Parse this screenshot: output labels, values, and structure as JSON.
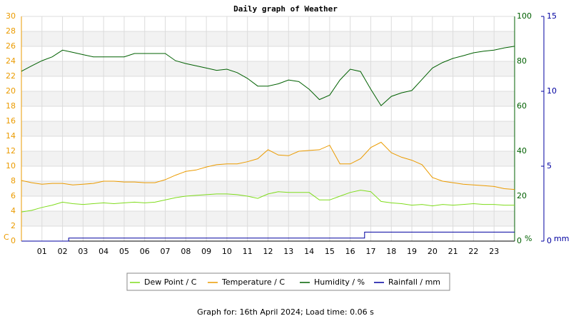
{
  "chart_data": {
    "type": "line",
    "title": "Daily graph of Weather",
    "footer": "Graph for: 16th April 2024; Load time: 0.06 s",
    "y_unit": "C",
    "y2_unit": "%",
    "y3_unit": "mm",
    "grid": true,
    "xlim": [
      0,
      24
    ],
    "xticks": [
      {
        "value": 1,
        "label": "01"
      },
      {
        "value": 2,
        "label": "02"
      },
      {
        "value": 3,
        "label": "03"
      },
      {
        "value": 4,
        "label": "04"
      },
      {
        "value": 5,
        "label": "05"
      },
      {
        "value": 6,
        "label": "06"
      },
      {
        "value": 7,
        "label": "07"
      },
      {
        "value": 8,
        "label": "08"
      },
      {
        "value": 9,
        "label": "09"
      },
      10,
      11,
      12,
      13,
      14,
      15,
      16,
      17,
      18,
      19,
      20,
      21,
      22,
      23
    ],
    "ylim": [
      0,
      30
    ],
    "yticks": [
      0,
      2,
      4,
      6,
      8,
      10,
      12,
      14,
      16,
      18,
      20,
      22,
      24,
      26,
      28,
      30
    ],
    "y2lim": [
      0,
      100
    ],
    "y2ticks": [
      0,
      20,
      40,
      60,
      80,
      100
    ],
    "y3lim": [
      0,
      15
    ],
    "y3ticks": [
      0,
      5,
      10,
      15
    ],
    "x": [
      0,
      0.5,
      1,
      1.5,
      2,
      2.5,
      3,
      3.5,
      4,
      4.5,
      5,
      5.5,
      6,
      6.5,
      7,
      7.5,
      8,
      8.5,
      9,
      9.5,
      10,
      10.5,
      11,
      11.5,
      12,
      12.5,
      13,
      13.5,
      14,
      14.5,
      15,
      15.5,
      16,
      16.5,
      17,
      17.5,
      18,
      18.5,
      19,
      19.5,
      20,
      20.5,
      21,
      21.5,
      22,
      22.5,
      23,
      23.5,
      24
    ],
    "series": [
      {
        "name": "Dew Point / C",
        "color": "#7fdc1c",
        "axis": "y",
        "values": [
          3.9,
          4.1,
          4.5,
          4.8,
          5.2,
          5.0,
          4.9,
          5.0,
          5.1,
          5.0,
          5.1,
          5.2,
          5.1,
          5.2,
          5.5,
          5.8,
          6.0,
          6.1,
          6.2,
          6.3,
          6.3,
          6.2,
          6.0,
          5.7,
          6.3,
          6.6,
          6.5,
          6.5,
          6.5,
          5.5,
          5.5,
          6.0,
          6.5,
          6.8,
          6.6,
          5.3,
          5.1,
          5.0,
          4.8,
          4.9,
          4.7,
          4.9,
          4.8,
          4.9,
          5.0,
          4.9,
          4.9,
          4.8,
          4.8
        ]
      },
      {
        "name": "Temperature / C",
        "color": "#eb9b00",
        "axis": "y",
        "values": [
          8.1,
          7.8,
          7.6,
          7.7,
          7.7,
          7.5,
          7.6,
          7.7,
          8.0,
          8.0,
          7.9,
          7.9,
          7.8,
          7.8,
          8.2,
          8.8,
          9.3,
          9.5,
          9.9,
          10.2,
          10.3,
          10.3,
          10.6,
          11.0,
          12.2,
          11.5,
          11.4,
          12.0,
          12.1,
          12.2,
          12.8,
          10.3,
          10.3,
          11.0,
          12.5,
          13.2,
          11.8,
          11.2,
          10.8,
          10.2,
          8.5,
          8.0,
          7.8,
          7.6,
          7.5,
          7.4,
          7.3,
          7.0,
          6.9
        ]
      },
      {
        "name": "Humidity / %",
        "color": "#006000",
        "axis": "y2",
        "values": [
          75.6,
          78,
          80.3,
          82,
          85,
          84,
          83,
          82,
          82,
          82,
          82,
          83.5,
          83.5,
          83.5,
          83.5,
          80.3,
          79,
          78,
          77,
          76,
          76.5,
          75,
          72.4,
          69,
          69,
          70,
          71.7,
          71,
          67.6,
          63,
          65,
          71.7,
          76.5,
          75.5,
          67.6,
          60.3,
          64.4,
          66,
          67,
          72,
          77,
          79.5,
          81.3,
          82.5,
          83.8,
          84.5,
          85,
          86,
          86.7
        ]
      }
    ],
    "rain": {
      "name": "Rainfall / mm",
      "color": "#0000a0",
      "axis": "y3",
      "x": [
        0,
        2.3,
        2.3,
        16.7,
        16.7,
        24
      ],
      "values": [
        0,
        0,
        0.2,
        0.2,
        0.6,
        0.6
      ]
    }
  }
}
